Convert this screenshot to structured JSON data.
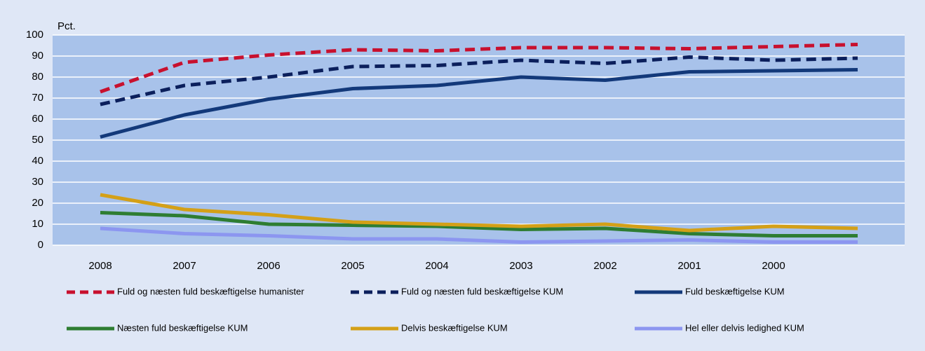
{
  "chart_data": {
    "type": "line",
    "y_label": "Pct.",
    "categories": [
      "2008",
      "2007",
      "2006",
      "2005",
      "2004",
      "2003",
      "2002",
      "2001",
      "2000",
      null
    ],
    "series": [
      {
        "name": "Fuld og næsten fuld beskæftigelse humanister",
        "color": "#c8102e",
        "dashed": true,
        "values": [
          73,
          87,
          90.5,
          93,
          92.5,
          94,
          94,
          93.5,
          94.5,
          95.5
        ]
      },
      {
        "name": "Fuld og næsten fuld beskæftigelse KUM",
        "color": "#0b1f5c",
        "dashed": true,
        "values": [
          67,
          76,
          80,
          85,
          85.5,
          88,
          86.5,
          89.5,
          88,
          89
        ]
      },
      {
        "name": "Fuld beskæftigelse KUM",
        "color": "#13397a",
        "dashed": false,
        "values": [
          51.5,
          62,
          69.5,
          74.5,
          76,
          80,
          78.5,
          82.5,
          83,
          83.5
        ]
      },
      {
        "name": "Næsten fuld beskæftigelse KUM",
        "color": "#2e7d32",
        "dashed": false,
        "values": [
          15.5,
          14,
          10,
          9.5,
          9,
          7.5,
          8,
          5.5,
          4.5,
          4.5
        ]
      },
      {
        "name": "Delvis beskæftigelse KUM",
        "color": "#d4a017",
        "dashed": false,
        "values": [
          24,
          17,
          14.5,
          11,
          10,
          9,
          10,
          7,
          9,
          8
        ]
      },
      {
        "name": "Hel eller delvis ledighed KUM",
        "color": "#8c96f0",
        "dashed": false,
        "values": [
          8,
          5.5,
          4.5,
          3,
          3,
          1.5,
          2,
          2.5,
          1.5,
          1.5
        ]
      }
    ],
    "ylim": [
      0,
      100
    ],
    "yticks": [
      0,
      10,
      20,
      30,
      40,
      50,
      60,
      70,
      80,
      90,
      100
    ],
    "grid": true
  }
}
